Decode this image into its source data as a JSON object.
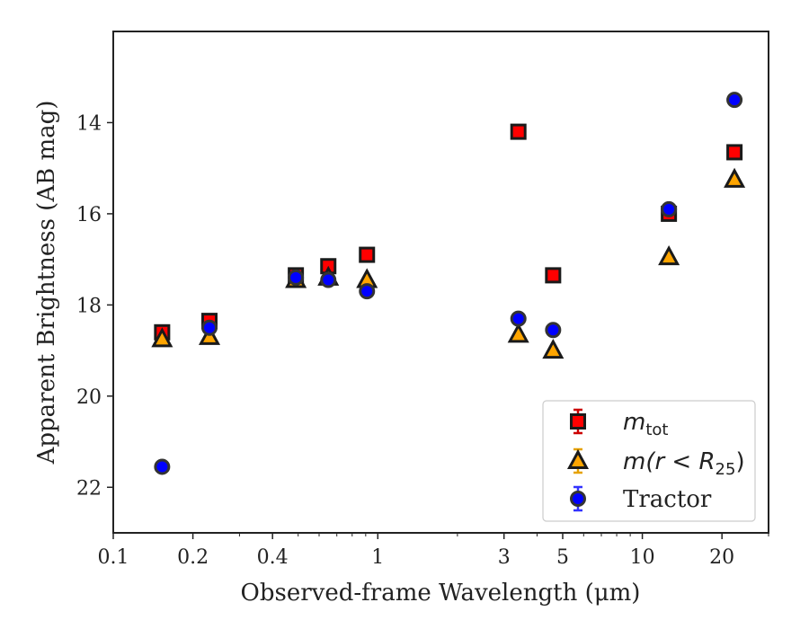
{
  "chart_data": {
    "type": "scatter",
    "xlabel": "Observed-frame Wavelength (μm)",
    "ylabel": "Apparent Brightness (AB mag)",
    "xscale": "log",
    "xlim": [
      0.1,
      30
    ],
    "ylim": [
      23,
      12
    ],
    "y_inverted": true,
    "x_ticks": [
      {
        "value": 0.1,
        "label": "0.1"
      },
      {
        "value": 0.2,
        "label": "0.2"
      },
      {
        "value": 0.4,
        "label": "0.4"
      },
      {
        "value": 1,
        "label": "1"
      },
      {
        "value": 3,
        "label": "3"
      },
      {
        "value": 5,
        "label": "5"
      },
      {
        "value": 10,
        "label": "10"
      },
      {
        "value": 20,
        "label": "20"
      }
    ],
    "y_ticks": [
      {
        "value": 14,
        "label": "14"
      },
      {
        "value": 16,
        "label": "16"
      },
      {
        "value": 18,
        "label": "18"
      },
      {
        "value": 20,
        "label": "20"
      },
      {
        "value": 22,
        "label": "22"
      }
    ],
    "grid": false,
    "legend_position": "lower right",
    "series": [
      {
        "name": "m_tot",
        "legend_main": "m",
        "legend_sub": "tot",
        "marker": "square",
        "color": "#ff0000",
        "edge_color": "#1a1a1a",
        "error_color": "#cc0000",
        "points": [
          {
            "x": 0.153,
            "y": 18.6
          },
          {
            "x": 0.231,
            "y": 18.35
          },
          {
            "x": 0.49,
            "y": 17.35
          },
          {
            "x": 0.65,
            "y": 17.15
          },
          {
            "x": 0.91,
            "y": 16.9
          },
          {
            "x": 3.4,
            "y": 14.2
          },
          {
            "x": 4.6,
            "y": 17.35
          },
          {
            "x": 12.6,
            "y": 16.0
          },
          {
            "x": 22.3,
            "y": 14.65
          }
        ]
      },
      {
        "name": "m(r < R_25)",
        "legend_main": "m(r < R",
        "legend_sub": "25",
        "legend_tail": ")",
        "marker": "triangle",
        "color": "#ffa500",
        "edge_color": "#1a1a1a",
        "error_color": "#e6a200",
        "points": [
          {
            "x": 0.153,
            "y": 18.75
          },
          {
            "x": 0.231,
            "y": 18.7
          },
          {
            "x": 0.49,
            "y": 17.45
          },
          {
            "x": 0.65,
            "y": 17.4
          },
          {
            "x": 0.91,
            "y": 17.45
          },
          {
            "x": 3.4,
            "y": 18.65
          },
          {
            "x": 4.6,
            "y": 19.0
          },
          {
            "x": 12.6,
            "y": 16.95
          },
          {
            "x": 22.3,
            "y": 15.25
          }
        ]
      },
      {
        "name": "Tractor",
        "legend_main": "Tractor",
        "marker": "circle",
        "color": "#0000ff",
        "edge_color": "#333333",
        "error_color": "#3333ff",
        "points": [
          {
            "x": 0.153,
            "y": 21.55
          },
          {
            "x": 0.231,
            "y": 18.5
          },
          {
            "x": 0.49,
            "y": 17.4
          },
          {
            "x": 0.65,
            "y": 17.45
          },
          {
            "x": 0.91,
            "y": 17.7
          },
          {
            "x": 3.4,
            "y": 18.3
          },
          {
            "x": 4.6,
            "y": 18.55
          },
          {
            "x": 12.6,
            "y": 15.9
          },
          {
            "x": 22.3,
            "y": 13.5
          }
        ]
      }
    ]
  }
}
